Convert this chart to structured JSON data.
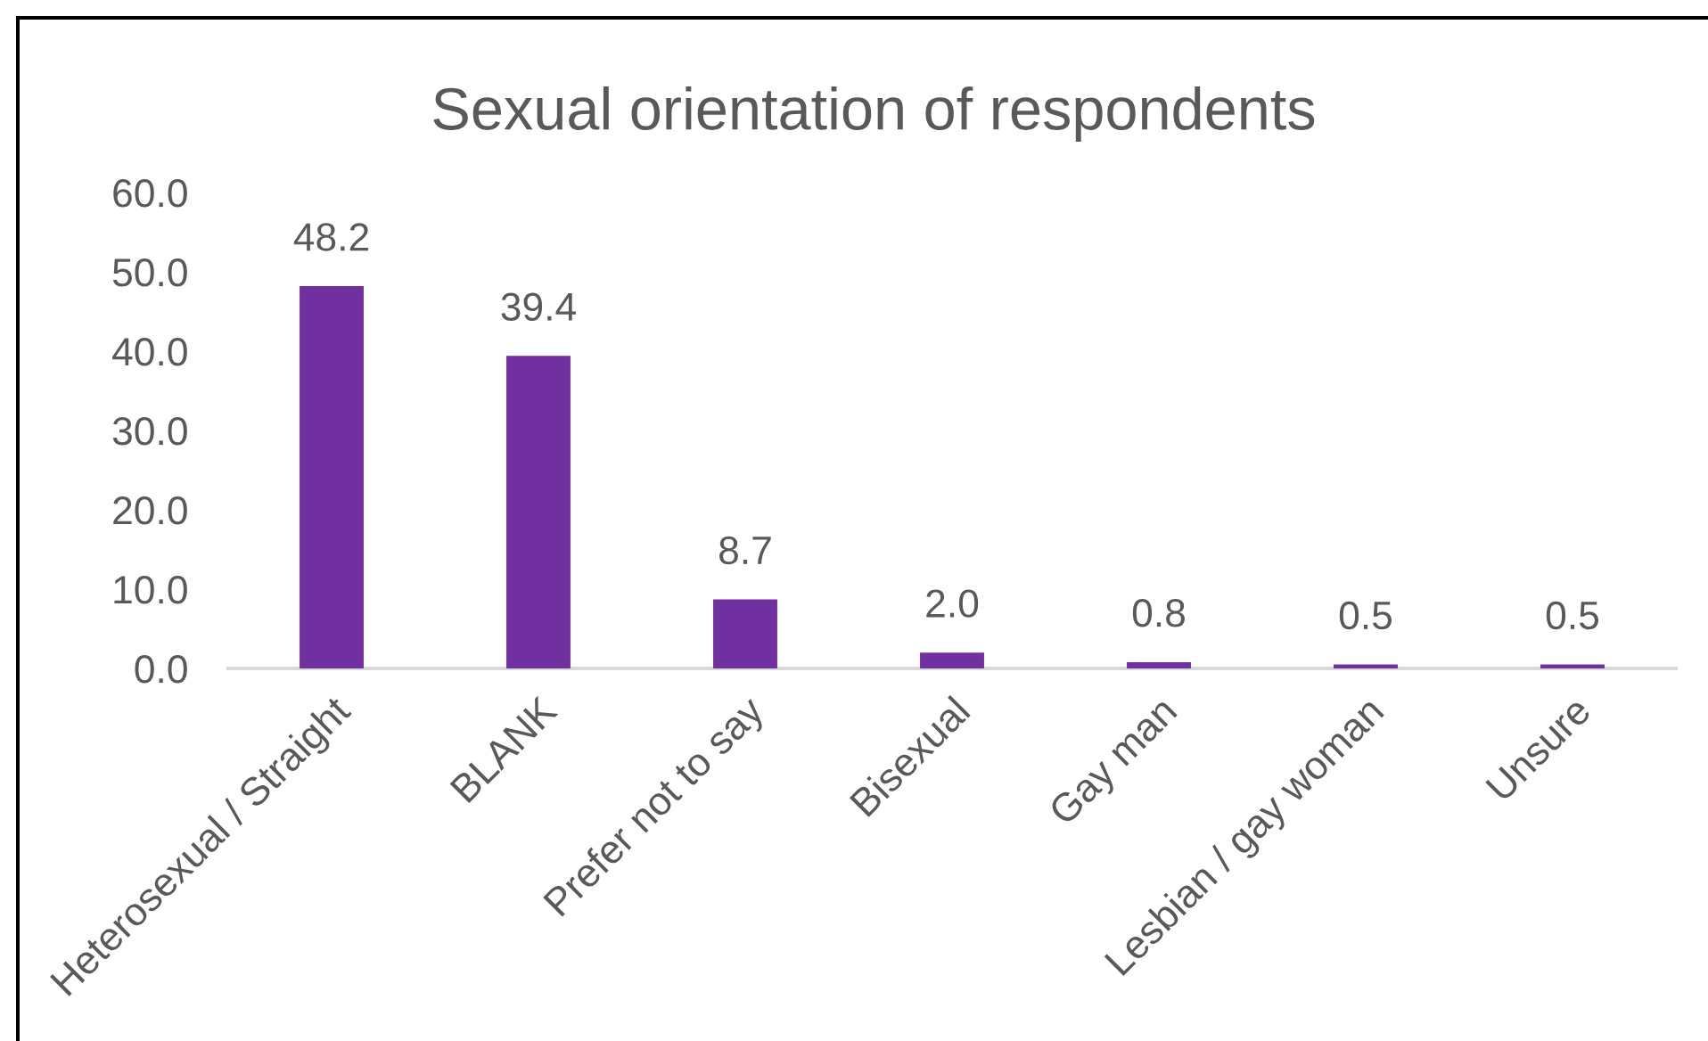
{
  "chart_data": {
    "type": "bar",
    "title": "Sexual orientation of respondents",
    "categories": [
      "Heterosexual / Straight",
      "BLANK",
      "Prefer not to say",
      "Bisexual",
      "Gay man",
      "Lesbian / gay woman",
      "Unsure"
    ],
    "values": [
      48.2,
      39.4,
      8.7,
      2.0,
      0.8,
      0.5,
      0.5
    ],
    "value_labels": [
      "48.2",
      "39.4",
      "8.7",
      "2.0",
      "0.8",
      "0.5",
      "0.5"
    ],
    "color": "#7030a0",
    "ylim": [
      0,
      60
    ],
    "yticks": [
      {
        "value": 0,
        "label": "0.0"
      },
      {
        "value": 10,
        "label": "10.0"
      },
      {
        "value": 20,
        "label": "20.0"
      },
      {
        "value": 30,
        "label": "30.0"
      },
      {
        "value": 40,
        "label": "40.0"
      },
      {
        "value": 50,
        "label": "50.0"
      },
      {
        "value": 60,
        "label": "60.0"
      }
    ],
    "grid": false
  }
}
